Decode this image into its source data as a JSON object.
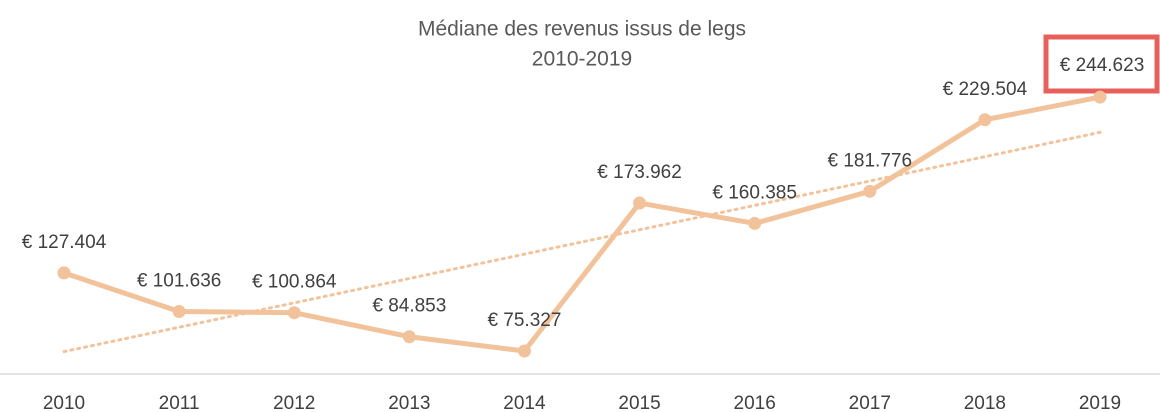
{
  "chart_data": {
    "type": "line",
    "title": "Médiane des revenus issus de legs",
    "subtitle": "2010-2019",
    "categories": [
      "2010",
      "2011",
      "2012",
      "2013",
      "2014",
      "2015",
      "2016",
      "2017",
      "2018",
      "2019"
    ],
    "series": [
      {
        "name": "Médiane",
        "color": "#f2c29b",
        "values": [
          127404,
          101636,
          100864,
          84853,
          75327,
          173962,
          160385,
          181776,
          229504,
          244623
        ],
        "value_labels": [
          "€ 127.404",
          "€ 101.636",
          "€ 100.864",
          "€ 84.853",
          "€ 75.327",
          "€ 173.962",
          "€ 160.385",
          "€ 181.776",
          "€ 229.504",
          "€ 244.623"
        ]
      }
    ],
    "ylim": [
      60000,
      260000
    ],
    "trendline": true
  }
}
